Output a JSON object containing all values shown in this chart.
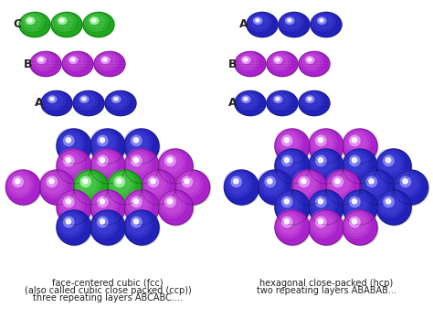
{
  "bg_color": "#ffffff",
  "green_base": "#1fa81f",
  "green_mid": "#55cc55",
  "green_hi": "#aaffaa",
  "purple_base": "#aa22cc",
  "purple_mid": "#cc55dd",
  "purple_hi": "#eeaaff",
  "blue_base": "#2222bb",
  "blue_mid": "#4444dd",
  "blue_hi": "#9999ff",
  "text_color": "#222222",
  "title_left_1": "face-centered cubic (fcc)",
  "title_left_2": "(also called cubic close packed (ccp))",
  "title_left_3": "three repeating layers ABCABC....",
  "title_right_1": "hexagonal close-packed (hcp)",
  "title_right_2": "two repeating layers ABABAB...",
  "fcc_label_A": "A",
  "fcc_label_B": "B",
  "fcc_label_C": "C",
  "hcp_label_A": "A",
  "hcp_label_B": "B",
  "hcp_label_A2": "A",
  "font_size_label": 9,
  "font_size_caption": 7
}
